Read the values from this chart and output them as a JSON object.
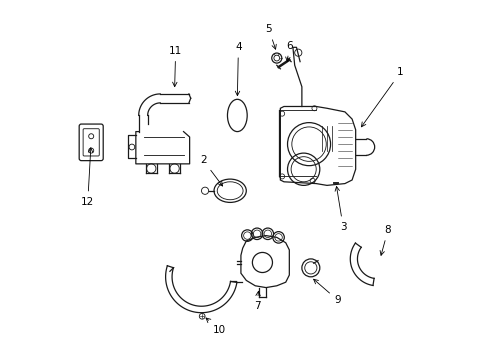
{
  "background_color": "#ffffff",
  "line_color": "#1a1a1a",
  "fig_width": 4.89,
  "fig_height": 3.6,
  "dpi": 100,
  "lw": 0.9,
  "label_fontsize": 7.5,
  "labels": {
    "1": [
      0.93,
      0.81,
      0.87,
      0.72
    ],
    "2": [
      0.39,
      0.56,
      0.43,
      0.53
    ],
    "3": [
      0.77,
      0.33,
      0.77,
      0.37
    ],
    "4": [
      0.49,
      0.87,
      0.49,
      0.81
    ],
    "5": [
      0.57,
      0.92,
      0.57,
      0.87
    ],
    "6": [
      0.62,
      0.87,
      0.64,
      0.84
    ],
    "7": [
      0.53,
      0.15,
      0.53,
      0.22
    ],
    "8": [
      0.9,
      0.36,
      0.88,
      0.29
    ],
    "9": [
      0.76,
      0.16,
      0.76,
      0.22
    ],
    "10": [
      0.43,
      0.08,
      0.43,
      0.13
    ],
    "11": [
      0.31,
      0.86,
      0.31,
      0.8
    ],
    "12": [
      0.065,
      0.43,
      0.065,
      0.5
    ]
  }
}
